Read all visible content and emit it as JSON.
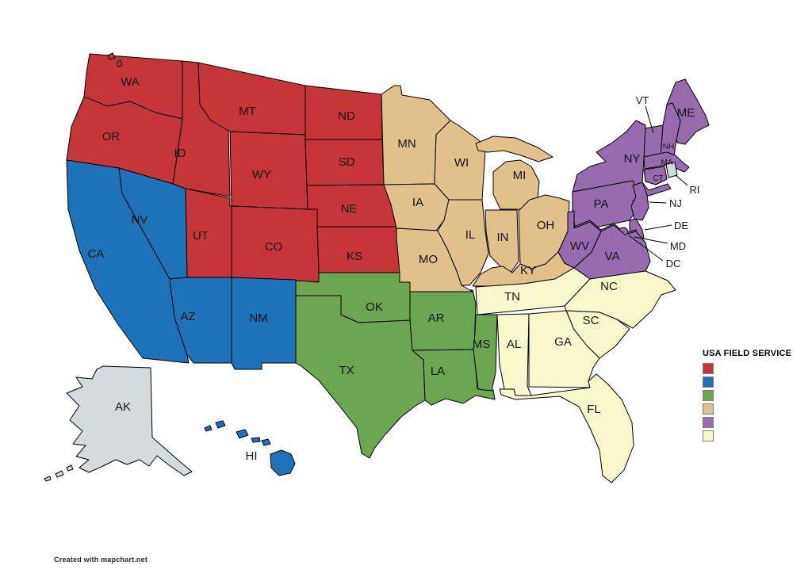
{
  "legend": {
    "title": "USA FIELD SERVICE",
    "items": [
      {
        "id": "r1",
        "color": "#c63638"
      },
      {
        "id": "r2",
        "color": "#1e72b8"
      },
      {
        "id": "r3",
        "color": "#6ba751"
      },
      {
        "id": "r4",
        "color": "#e0c189"
      },
      {
        "id": "r5",
        "color": "#966cae"
      },
      {
        "id": "r6",
        "color": "#f9f8cc"
      }
    ]
  },
  "map": {
    "default_color": "#d4dbde",
    "border_color": "#000000",
    "background": "#ffffff",
    "states": [
      {
        "abbr": "WA",
        "region": "r1"
      },
      {
        "abbr": "OR",
        "region": "r1"
      },
      {
        "abbr": "ID",
        "region": "r1"
      },
      {
        "abbr": "MT",
        "region": "r1"
      },
      {
        "abbr": "WY",
        "region": "r1"
      },
      {
        "abbr": "ND",
        "region": "r1"
      },
      {
        "abbr": "SD",
        "region": "r1"
      },
      {
        "abbr": "NE",
        "region": "r1"
      },
      {
        "abbr": "KS",
        "region": "r1"
      },
      {
        "abbr": "UT",
        "region": "r1"
      },
      {
        "abbr": "CO",
        "region": "r1"
      },
      {
        "abbr": "CA",
        "region": "r2"
      },
      {
        "abbr": "NV",
        "region": "r2"
      },
      {
        "abbr": "AZ",
        "region": "r2"
      },
      {
        "abbr": "NM",
        "region": "r2"
      },
      {
        "abbr": "HI",
        "region": "r2"
      },
      {
        "abbr": "TX",
        "region": "r3"
      },
      {
        "abbr": "OK",
        "region": "r3"
      },
      {
        "abbr": "AR",
        "region": "r3"
      },
      {
        "abbr": "LA",
        "region": "r3"
      },
      {
        "abbr": "MS",
        "region": "r3"
      },
      {
        "abbr": "MN",
        "region": "r4"
      },
      {
        "abbr": "WI",
        "region": "r4"
      },
      {
        "abbr": "MI",
        "region": "r4"
      },
      {
        "abbr": "IA",
        "region": "r4"
      },
      {
        "abbr": "MO",
        "region": "r4"
      },
      {
        "abbr": "IL",
        "region": "r4"
      },
      {
        "abbr": "IN",
        "region": "r4"
      },
      {
        "abbr": "OH",
        "region": "r4"
      },
      {
        "abbr": "KY",
        "region": "r4"
      },
      {
        "abbr": "ME",
        "region": "r5"
      },
      {
        "abbr": "NH",
        "region": "r5"
      },
      {
        "abbr": "VT",
        "region": "r5"
      },
      {
        "abbr": "MA",
        "region": "r5"
      },
      {
        "abbr": "CT",
        "region": "r5"
      },
      {
        "abbr": "NY",
        "region": "r5"
      },
      {
        "abbr": "PA",
        "region": "r5"
      },
      {
        "abbr": "NJ",
        "region": "r5"
      },
      {
        "abbr": "DE",
        "region": "r5"
      },
      {
        "abbr": "MD",
        "region": "r5"
      },
      {
        "abbr": "DC",
        "region": "r5"
      },
      {
        "abbr": "WV",
        "region": "r5"
      },
      {
        "abbr": "VA",
        "region": "r5"
      },
      {
        "abbr": "TN",
        "region": "r6"
      },
      {
        "abbr": "NC",
        "region": "r6"
      },
      {
        "abbr": "SC",
        "region": "r6"
      },
      {
        "abbr": "GA",
        "region": "r6"
      },
      {
        "abbr": "AL",
        "region": "r6"
      },
      {
        "abbr": "FL",
        "region": "r6"
      },
      {
        "abbr": "AK",
        "region": "none"
      },
      {
        "abbr": "RI",
        "region": "none"
      }
    ]
  },
  "attribution": {
    "text": "Created with mapchart.net"
  }
}
